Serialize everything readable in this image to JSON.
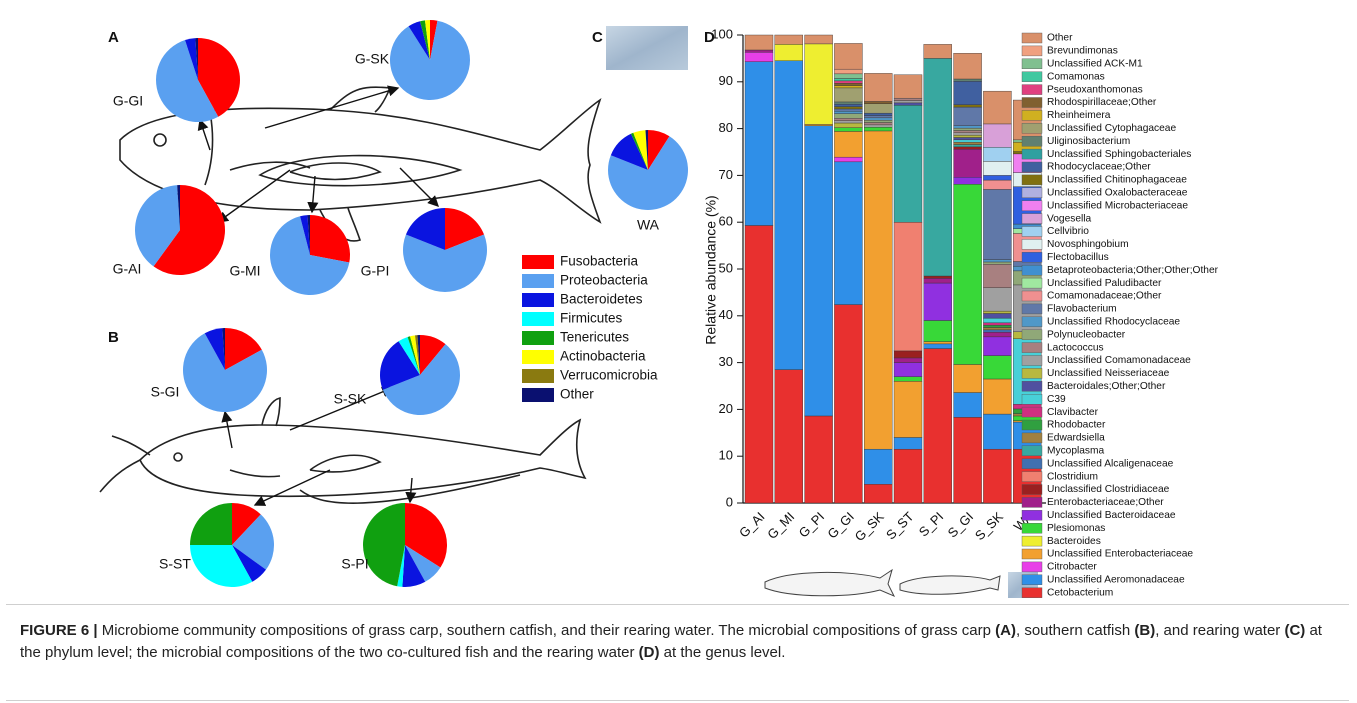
{
  "panels": [
    "A",
    "B",
    "C",
    "D"
  ],
  "caption": [
    "FIGURE 6 |",
    " Microbiome community compositions of grass carp, southern catfish, and their rearing water. The microbial compositions of grass carp ",
    "(A)",
    ", southern catfish ",
    "(B)",
    ", and rearing water ",
    "(C)",
    " at the phylum level; the microbial compositions of the two co-cultured fish and the rearing water ",
    "(D)",
    " at the genus level."
  ],
  "chart_data": [
    {
      "type": "pie",
      "categories": [
        "Fusobacteria",
        "Proteobacteria",
        "Bacteroidetes",
        "Firmicutes",
        "Tenericutes",
        "Actinobacteria",
        "Verrucomicrobia",
        "Other"
      ],
      "colors": [
        "#ff0000",
        "#5aa0f0",
        "#0a14e0",
        "#00ffff",
        "#10a010",
        "#ffff00",
        "#8a7a10",
        "#0a1070"
      ],
      "series": [
        {
          "name": "G-GI",
          "values": [
            42,
            53,
            4,
            0,
            0,
            0,
            0,
            1
          ]
        },
        {
          "name": "G-SK",
          "values": [
            3,
            88,
            5,
            0,
            2,
            2,
            0,
            0
          ]
        },
        {
          "name": "G-AI",
          "values": [
            60,
            39,
            0,
            0,
            0,
            0,
            0,
            1
          ]
        },
        {
          "name": "G-MI",
          "values": [
            28,
            68,
            3,
            0,
            0,
            0,
            0,
            1
          ]
        },
        {
          "name": "G-PI",
          "values": [
            19,
            62,
            19,
            0,
            0,
            0,
            0,
            0
          ]
        },
        {
          "name": "WA",
          "values": [
            9,
            72,
            12,
            0,
            1,
            5,
            0,
            1
          ]
        },
        {
          "name": "S-GI",
          "values": [
            17,
            75,
            7,
            0,
            0,
            0,
            0,
            1
          ]
        },
        {
          "name": "S-SK",
          "values": [
            11,
            58,
            22,
            4,
            1,
            2,
            1,
            1
          ]
        },
        {
          "name": "S-ST",
          "values": [
            12,
            23,
            7,
            33,
            25,
            0,
            0,
            0
          ]
        },
        {
          "name": "S-PI",
          "values": [
            34,
            8,
            9,
            2,
            47,
            0,
            0,
            0
          ]
        }
      ]
    },
    {
      "type": "bar",
      "stacked": true,
      "ylabel": "Relative abundance (%)",
      "categories": [
        "G_AI",
        "G_MI",
        "G_PI",
        "G_GI",
        "G_SK",
        "S_ST",
        "S_PI",
        "S_GI",
        "S_SK",
        "WA"
      ],
      "ylim": [
        0,
        100
      ],
      "yticks": [
        0,
        10,
        20,
        30,
        40,
        50,
        60,
        70,
        80,
        90,
        100
      ],
      "series": [
        {
          "name": "Other",
          "color": "#d9906a",
          "values": [
            3.2,
            2,
            1.9,
            5.5,
            6,
            5,
            3,
            5.5,
            7,
            8.5
          ]
        },
        {
          "name": "Brevundimonas",
          "color": "#f0a080",
          "values": [
            0,
            0,
            0,
            1,
            0,
            0,
            0,
            0,
            0,
            0
          ]
        },
        {
          "name": "Unclassified ACK-M1",
          "color": "#80c090",
          "values": [
            0,
            0,
            0,
            1,
            0,
            0,
            0,
            0,
            0,
            0.5
          ]
        },
        {
          "name": "Comamonas",
          "color": "#40c8a0",
          "values": [
            0,
            0,
            0,
            0.5,
            0,
            0,
            0,
            0,
            0,
            0
          ]
        },
        {
          "name": "Pseudoxanthomonas",
          "color": "#e04080",
          "values": [
            0,
            0,
            0,
            0.5,
            0,
            0,
            0,
            0,
            0,
            0
          ]
        },
        {
          "name": "Rhodospirillaceae;Other",
          "color": "#806030",
          "values": [
            0,
            0,
            0,
            0.5,
            0.5,
            0,
            0,
            0,
            0,
            0
          ]
        },
        {
          "name": "Rheinheimera",
          "color": "#d0b020",
          "values": [
            0,
            0,
            0,
            0.5,
            0,
            0,
            0,
            0,
            0,
            2
          ]
        },
        {
          "name": "Unclassified Cytophagaceae",
          "color": "#a0a070",
          "values": [
            0,
            0,
            0,
            3,
            2,
            0,
            0,
            0,
            0,
            0
          ]
        },
        {
          "name": "Uliginosibacterium",
          "color": "#608070",
          "values": [
            0,
            0,
            0,
            0.5,
            0,
            0,
            0,
            0.5,
            0,
            0
          ]
        },
        {
          "name": "Unclassified Sphingobacteriales",
          "color": "#30a0a0",
          "values": [
            0,
            0,
            0,
            0,
            0,
            0,
            0,
            0,
            0,
            0
          ]
        },
        {
          "name": "Rhodocyclaceae;Other",
          "color": "#4060a0",
          "values": [
            0,
            0,
            0,
            0.5,
            0.5,
            0,
            0,
            5,
            0,
            0
          ]
        },
        {
          "name": "Unclassified Chitinophagaceae",
          "color": "#807010",
          "values": [
            0,
            0,
            0,
            0.5,
            0,
            0,
            0,
            0.5,
            0,
            0.5
          ]
        },
        {
          "name": "Unclassified Oxalobacteraceae",
          "color": "#b0b0e0",
          "values": [
            0,
            0,
            0,
            0,
            0,
            0,
            0,
            0,
            0,
            0
          ]
        },
        {
          "name": "Unclassified Microbacteriaceae",
          "color": "#f080f0",
          "values": [
            0,
            0,
            0,
            0,
            0,
            0,
            0,
            0,
            0,
            4
          ]
        },
        {
          "name": "Vogesella",
          "color": "#d8a0d8",
          "values": [
            0,
            0,
            0,
            0,
            0,
            0,
            0,
            0,
            5,
            0
          ]
        },
        {
          "name": "Cellvibrio",
          "color": "#a0d0f0",
          "values": [
            0,
            0,
            0,
            0,
            0,
            0,
            0,
            0,
            3,
            0
          ]
        },
        {
          "name": "Novosphingobium",
          "color": "#e0f0f0",
          "values": [
            0,
            0,
            0,
            0,
            0,
            0,
            0,
            0,
            3,
            3
          ]
        },
        {
          "name": "Flectobacillus",
          "color": "#3060e0",
          "values": [
            0,
            0,
            0,
            0,
            0,
            0,
            0,
            0,
            1,
            8
          ]
        },
        {
          "name": "Betaproteobacteria;Other;Other;Other",
          "color": "#4090d0",
          "values": [
            0,
            0,
            0,
            0,
            0,
            0,
            0,
            0,
            0,
            1
          ]
        },
        {
          "name": "Unclassified Paludibacter",
          "color": "#a0e8a0",
          "values": [
            0,
            0,
            0,
            0,
            0,
            0,
            0,
            0,
            0,
            1
          ]
        },
        {
          "name": "Comamonadaceae;Other",
          "color": "#f09090",
          "values": [
            0,
            0,
            0,
            0,
            0,
            0,
            0,
            0,
            2,
            6
          ]
        },
        {
          "name": "Flavobacterium",
          "color": "#6078a8",
          "values": [
            0,
            0,
            0,
            0.5,
            0.5,
            0,
            0,
            4,
            15,
            1
          ]
        },
        {
          "name": "Unclassified Rhodocyclaceae",
          "color": "#5098c8",
          "values": [
            0,
            0,
            0,
            0.5,
            0.5,
            0,
            0,
            0.5,
            0.5,
            1
          ]
        },
        {
          "name": "Polynucleobacter",
          "color": "#90a878",
          "values": [
            0,
            0,
            0,
            1,
            0.5,
            0,
            0,
            0.5,
            0.5,
            3
          ]
        },
        {
          "name": "Lactococcus",
          "color": "#a88080",
          "values": [
            0,
            0,
            0,
            0.5,
            0.5,
            0.5,
            0,
            0.5,
            5,
            0
          ]
        },
        {
          "name": "Unclassified Comamonadaceae",
          "color": "#a0a0a0",
          "values": [
            0,
            0,
            0,
            0.5,
            0.5,
            0.5,
            0,
            0.5,
            5,
            10
          ]
        },
        {
          "name": "Unclassified Neisseriaceae",
          "color": "#b8b840",
          "values": [
            0,
            0,
            0,
            1,
            0,
            0,
            0,
            0.5,
            0.5,
            1.5
          ]
        },
        {
          "name": "Bacteroidales;Other;Other",
          "color": "#5050a0",
          "values": [
            0,
            0,
            0,
            0,
            0,
            0.5,
            0,
            0.5,
            1,
            0
          ]
        },
        {
          "name": "C39",
          "color": "#48d0d8",
          "values": [
            0,
            0,
            0,
            0,
            0,
            0,
            0,
            0.5,
            1,
            14
          ]
        },
        {
          "name": "Clavibacter",
          "color": "#d03080",
          "values": [
            0,
            0,
            0,
            0,
            0,
            0,
            0,
            0,
            0.5,
            1
          ]
        },
        {
          "name": "Rhodobacter",
          "color": "#30a040",
          "values": [
            0,
            0,
            0,
            0,
            0,
            0,
            0,
            0,
            0.5,
            1
          ]
        },
        {
          "name": "Edwardsiella",
          "color": "#a08040",
          "values": [
            0,
            0,
            0,
            0,
            0,
            0,
            0,
            0.5,
            0.5,
            0.5
          ]
        },
        {
          "name": "Mycoplasma",
          "color": "#38a8a0",
          "values": [
            0,
            0,
            0,
            0,
            0,
            25,
            46.5,
            0.5,
            0,
            0
          ]
        },
        {
          "name": "Unclassified Alcaligenaceae",
          "color": "#4070b0",
          "values": [
            0,
            0,
            0,
            0,
            0,
            0,
            0,
            0,
            0.5,
            0
          ]
        },
        {
          "name": "Clostridium",
          "color": "#f08070",
          "values": [
            0,
            0,
            0,
            0,
            0,
            27.5,
            0,
            0,
            0,
            0
          ]
        },
        {
          "name": "Unclassified Clostridiaceae",
          "color": "#9a2020",
          "values": [
            0,
            0,
            0,
            0,
            0,
            1.5,
            0.5,
            0.5,
            0,
            0
          ]
        },
        {
          "name": "Enterobacteriaceae;Other",
          "color": "#a0208a",
          "values": [
            0.5,
            0,
            0,
            0,
            0,
            1,
            1,
            6,
            1,
            0
          ]
        },
        {
          "name": "Unclassified Bacteroidaceae",
          "color": "#9030e0",
          "values": [
            0,
            0,
            0,
            0,
            0,
            3,
            8,
            1.5,
            4,
            0
          ]
        },
        {
          "name": "Plesiomonas",
          "color": "#38d838",
          "values": [
            0,
            0,
            0,
            0.8,
            0.8,
            1,
            4.5,
            38.5,
            5,
            1
          ]
        },
        {
          "name": "Bacteroides",
          "color": "#eeee30",
          "values": [
            0,
            3.5,
            17.2,
            0,
            0,
            0,
            0,
            0,
            0,
            0
          ]
        },
        {
          "name": "Unclassified Enterobacteriaceae",
          "color": "#f2a030",
          "values": [
            0,
            0,
            0.3,
            5.5,
            68,
            12,
            0.5,
            6,
            7.5,
            0.3
          ]
        },
        {
          "name": "Citrobacter",
          "color": "#e83fe8",
          "values": [
            2,
            0,
            0,
            1,
            0,
            0,
            0,
            0,
            0,
            0
          ]
        },
        {
          "name": "Unclassified Aeromonadaceae",
          "color": "#2f8fe8",
          "values": [
            35,
            66,
            62,
            30.5,
            7.5,
            2.5,
            1,
            5.3,
            7.5,
            5.8
          ]
        },
        {
          "name": "Cetobacterium",
          "color": "#e8302f",
          "values": [
            59.3,
            28.5,
            18.6,
            42.4,
            4,
            11.5,
            33,
            18.3,
            11.5,
            11.5
          ]
        }
      ]
    }
  ]
}
